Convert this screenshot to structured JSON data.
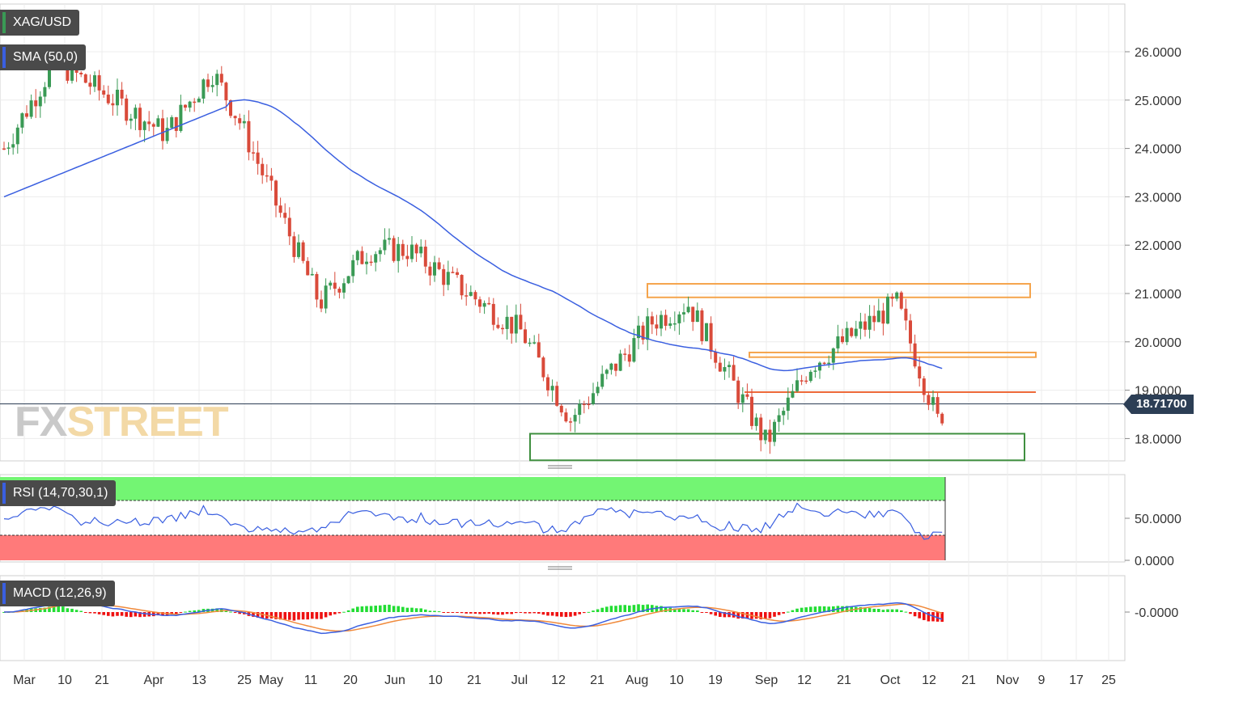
{
  "instrument": "XAG/USD",
  "indicators": {
    "sma": "SMA (50,0)",
    "rsi": "RSI (14,70,30,1)",
    "macd": "MACD (12,26,9)"
  },
  "watermark": {
    "part1": "FX",
    "part2": "STREET"
  },
  "current_price": "18.71700",
  "colors": {
    "up": "#3a9a55",
    "down": "#d94a3a",
    "sma": "#3a5fe0",
    "macd_signal": "#f08a3c",
    "box_orange": "#f5a44c",
    "box_red": "#ee6a3a",
    "box_green": "#3f8f3f",
    "rsi_overbought": "#73f573",
    "rsi_oversold": "#ff7a7a"
  },
  "price_axis": [
    "26.0000",
    "25.0000",
    "24.0000",
    "23.0000",
    "22.0000",
    "21.0000",
    "20.0000",
    "19.0000",
    "18.0000"
  ],
  "rsi_axis": [
    "50.0000",
    "0.0000"
  ],
  "macd_axis": [
    "-0.0000"
  ],
  "x_axis": [
    "Mar",
    "10",
    "21",
    "Apr",
    "13",
    "25",
    "May",
    "11",
    "20",
    "Jun",
    "10",
    "21",
    "Jul",
    "12",
    "21",
    "Aug",
    "10",
    "19",
    "Sep",
    "12",
    "21",
    "Oct",
    "12",
    "21",
    "Nov",
    "9",
    "17",
    "25"
  ],
  "chart_data": {
    "type": "candlestick",
    "title": "XAG/USD",
    "y_range": [
      17.5,
      27.0
    ],
    "current_price": 18.717,
    "key": [
      {
        "date": "Mar",
        "close": 24.0
      },
      {
        "date": "10",
        "close": 25.8
      },
      {
        "date": "Apr",
        "close": 24.3
      },
      {
        "date": "13",
        "close": 25.6
      },
      {
        "date": "25",
        "close": 24.6
      },
      {
        "date": "11",
        "close": 20.8
      },
      {
        "date": "20",
        "close": 21.9
      },
      {
        "date": "Jun",
        "close": 21.9
      },
      {
        "date": "Jul",
        "close": 20.2
      },
      {
        "date": "12",
        "close": 18.4
      },
      {
        "date": "Aug",
        "close": 20.4
      },
      {
        "date": "10",
        "close": 20.8
      },
      {
        "date": "Sep",
        "close": 17.9
      },
      {
        "date": "12",
        "close": 19.5
      },
      {
        "date": "Oct",
        "close": 20.8
      },
      {
        "date": "12",
        "close": 18.3
      },
      {
        "date": "21",
        "close": 18.72
      }
    ],
    "zones": [
      {
        "type": "resistance",
        "from": 20.92,
        "to": 21.2
      },
      {
        "type": "resistance",
        "from": 19.7,
        "to": 19.78
      },
      {
        "type": "resistance",
        "from": 18.95,
        "to": 18.97
      },
      {
        "type": "support",
        "from": 17.55,
        "to": 18.1
      }
    ],
    "rsi_levels": {
      "overbought": 70,
      "oversold": 30,
      "current": 44
    },
    "macd_current": -0.1
  }
}
